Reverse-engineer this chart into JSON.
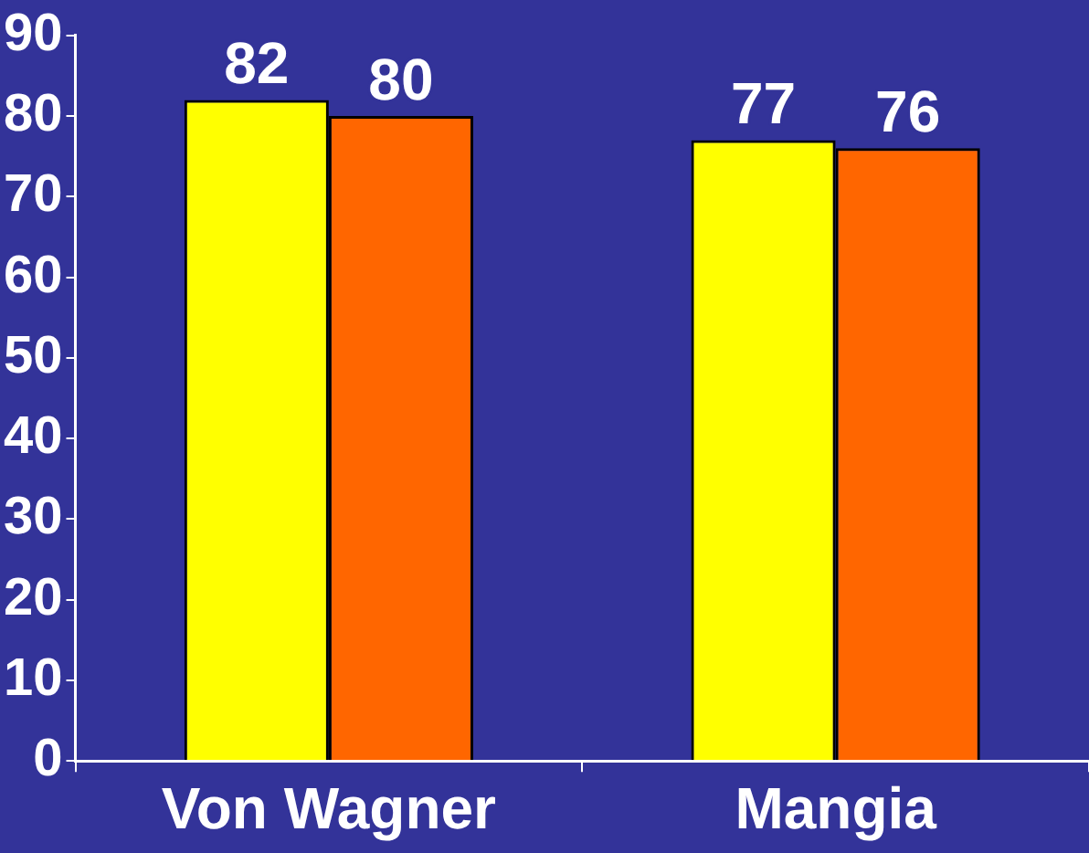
{
  "chart_data": {
    "type": "bar",
    "categories": [
      "Von Wagner",
      "Mangia"
    ],
    "series": [
      {
        "color": "#ffff00",
        "values": [
          82,
          77
        ]
      },
      {
        "color": "#ff6600",
        "values": [
          80,
          76
        ]
      }
    ],
    "ylim": [
      0,
      90
    ],
    "yticks": [
      0,
      10,
      20,
      30,
      40,
      50,
      60,
      70,
      80,
      90
    ],
    "data_labels": true
  }
}
